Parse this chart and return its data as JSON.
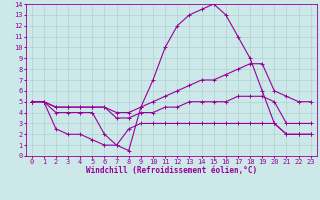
{
  "background_color": "#cce8e8",
  "grid_color": "#aacccc",
  "line_color": "#990099",
  "marker": "+",
  "markersize": 3,
  "linewidth": 0.8,
  "xlabel": "Windchill (Refroidissement éolien,°C)",
  "xlabel_fontsize": 5.5,
  "tick_fontsize": 5,
  "xlim": [
    -0.5,
    23.5
  ],
  "ylim": [
    0,
    14
  ],
  "xticks": [
    0,
    1,
    2,
    3,
    4,
    5,
    6,
    7,
    8,
    9,
    10,
    11,
    12,
    13,
    14,
    15,
    16,
    17,
    18,
    19,
    20,
    21,
    22,
    23
  ],
  "yticks": [
    0,
    1,
    2,
    3,
    4,
    5,
    6,
    7,
    8,
    9,
    10,
    11,
    12,
    13,
    14
  ],
  "series": [
    [
      5,
      5,
      4,
      4,
      4,
      4,
      2,
      1,
      0.5,
      4.5,
      7,
      10,
      12,
      13,
      13.5,
      14,
      13,
      11,
      9,
      6,
      3,
      2,
      2,
      2
    ],
    [
      5,
      5,
      4.5,
      4.5,
      4.5,
      4.5,
      4.5,
      4,
      4,
      4.5,
      5,
      5.5,
      6,
      6.5,
      7,
      7,
      7.5,
      8,
      8.5,
      8.5,
      6,
      5.5,
      5,
      5
    ],
    [
      5,
      5,
      4.5,
      4.5,
      4.5,
      4.5,
      4.5,
      3.5,
      3.5,
      4,
      4,
      4.5,
      4.5,
      5,
      5,
      5,
      5,
      5.5,
      5.5,
      5.5,
      5,
      3,
      3,
      3
    ],
    [
      5,
      5,
      2.5,
      2,
      2,
      1.5,
      1,
      1,
      2.5,
      3,
      3,
      3,
      3,
      3,
      3,
      3,
      3,
      3,
      3,
      3,
      3,
      2,
      2,
      2
    ]
  ],
  "x_values": [
    0,
    1,
    2,
    3,
    4,
    5,
    6,
    7,
    8,
    9,
    10,
    11,
    12,
    13,
    14,
    15,
    16,
    17,
    18,
    19,
    20,
    21,
    22,
    23
  ]
}
